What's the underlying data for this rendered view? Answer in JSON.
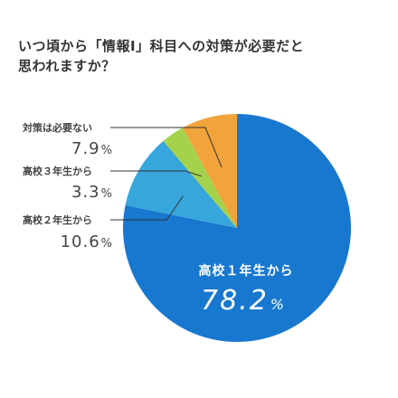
{
  "title": "いつ頃から「情報Ⅰ」科目への対策が必要だと\n思われますか？",
  "chart_data": {
    "type": "pie",
    "title": "いつ頃から「情報Ⅰ」科目への対策が必要だと思われますか？",
    "slices": [
      {
        "label": "高校１年生から",
        "value_text": "78.2",
        "unit": "%",
        "value": 78.2,
        "color": "#1878d0"
      },
      {
        "label": "高校２年生から",
        "value_text": "10.6",
        "unit": "%",
        "value": 10.6,
        "color": "#36a6dc"
      },
      {
        "label": "高校３年生から",
        "value_text": "3.3",
        "unit": "%",
        "value": 3.3,
        "color": "#a4d24c"
      },
      {
        "label": "対策は必要ない",
        "value_text": "7.9",
        "unit": "%",
        "value": 7.9,
        "color": "#f2a43c"
      }
    ]
  }
}
